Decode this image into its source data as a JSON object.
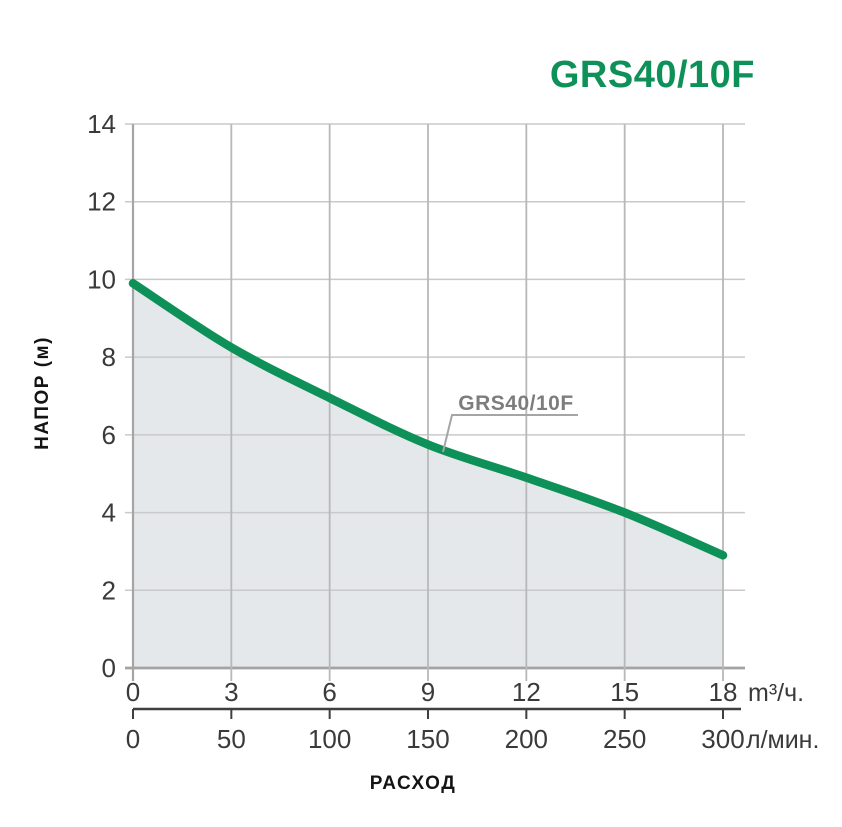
{
  "header": {
    "title": "GRS40/10F"
  },
  "colors": {
    "accent_green": "#0d9158",
    "area_fill": "#e5e8eb",
    "grid_horizontal": "#c9c9c9",
    "grid_vertical": "#b8b8b8",
    "axis_left": "#a5a5a5",
    "baseline": "#a3a3a3",
    "secondary_axis": "#3f3f3f",
    "tick_text": "#3a3a3a",
    "curve_label_gray": "#7d7d7d",
    "leader_line": "#a5a5a5"
  },
  "chart_data": {
    "type": "line",
    "title": "GRS40/10F",
    "curve_label": "GRS40/10F",
    "xlabel": "РАСХОД",
    "ylabel": "НАПОР (м)",
    "xlim": [
      0,
      18
    ],
    "ylim": [
      0,
      14
    ],
    "grid": true,
    "legend_position": "none",
    "x_axis_primary": {
      "unit": "m³/ч.",
      "ticks": [
        0,
        3,
        6,
        9,
        12,
        15,
        18
      ]
    },
    "x_axis_secondary": {
      "unit": "л/мин.",
      "ticks": [
        0,
        50,
        100,
        150,
        200,
        250,
        300
      ],
      "max": 300
    },
    "y_axis": {
      "ticks": [
        0,
        2,
        4,
        6,
        8,
        10,
        12,
        14
      ]
    },
    "series": [
      {
        "name": "GRS40/10F",
        "x_m3h": [
          0,
          3,
          6,
          9,
          12,
          15,
          18
        ],
        "head_m": [
          9.9,
          8.25,
          6.95,
          5.75,
          4.9,
          4.0,
          2.9
        ]
      }
    ]
  }
}
